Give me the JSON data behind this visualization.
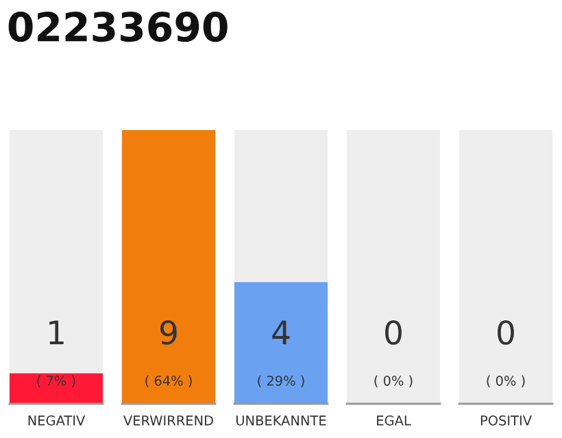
{
  "chart_data": {
    "type": "bar",
    "title": "02233690",
    "categories": [
      "NEGATIV",
      "VERWIRREND",
      "UNBEKANNTE",
      "EGAL",
      "POSITIV"
    ],
    "series": [
      {
        "color": "#eeeeee",
        "values": [
          9,
          null,
          9,
          9,
          9
        ]
      },
      {
        "colors": [
          "#ff1937",
          "#f07d0c",
          "#6aa1f0",
          "#eeeeee",
          "#eeeeee"
        ],
        "values": [
          1,
          9,
          4,
          0,
          0
        ],
        "value_labels": [
          "1",
          "9",
          "4",
          "0",
          "0"
        ]
      }
    ],
    "ylim": [
      0,
      9
    ],
    "tick_labels": "x",
    "grid": false,
    "annotations": [
      "( 7% )",
      "( 64% )",
      "( 29% )",
      "( 0% )",
      "( 0% )"
    ]
  }
}
